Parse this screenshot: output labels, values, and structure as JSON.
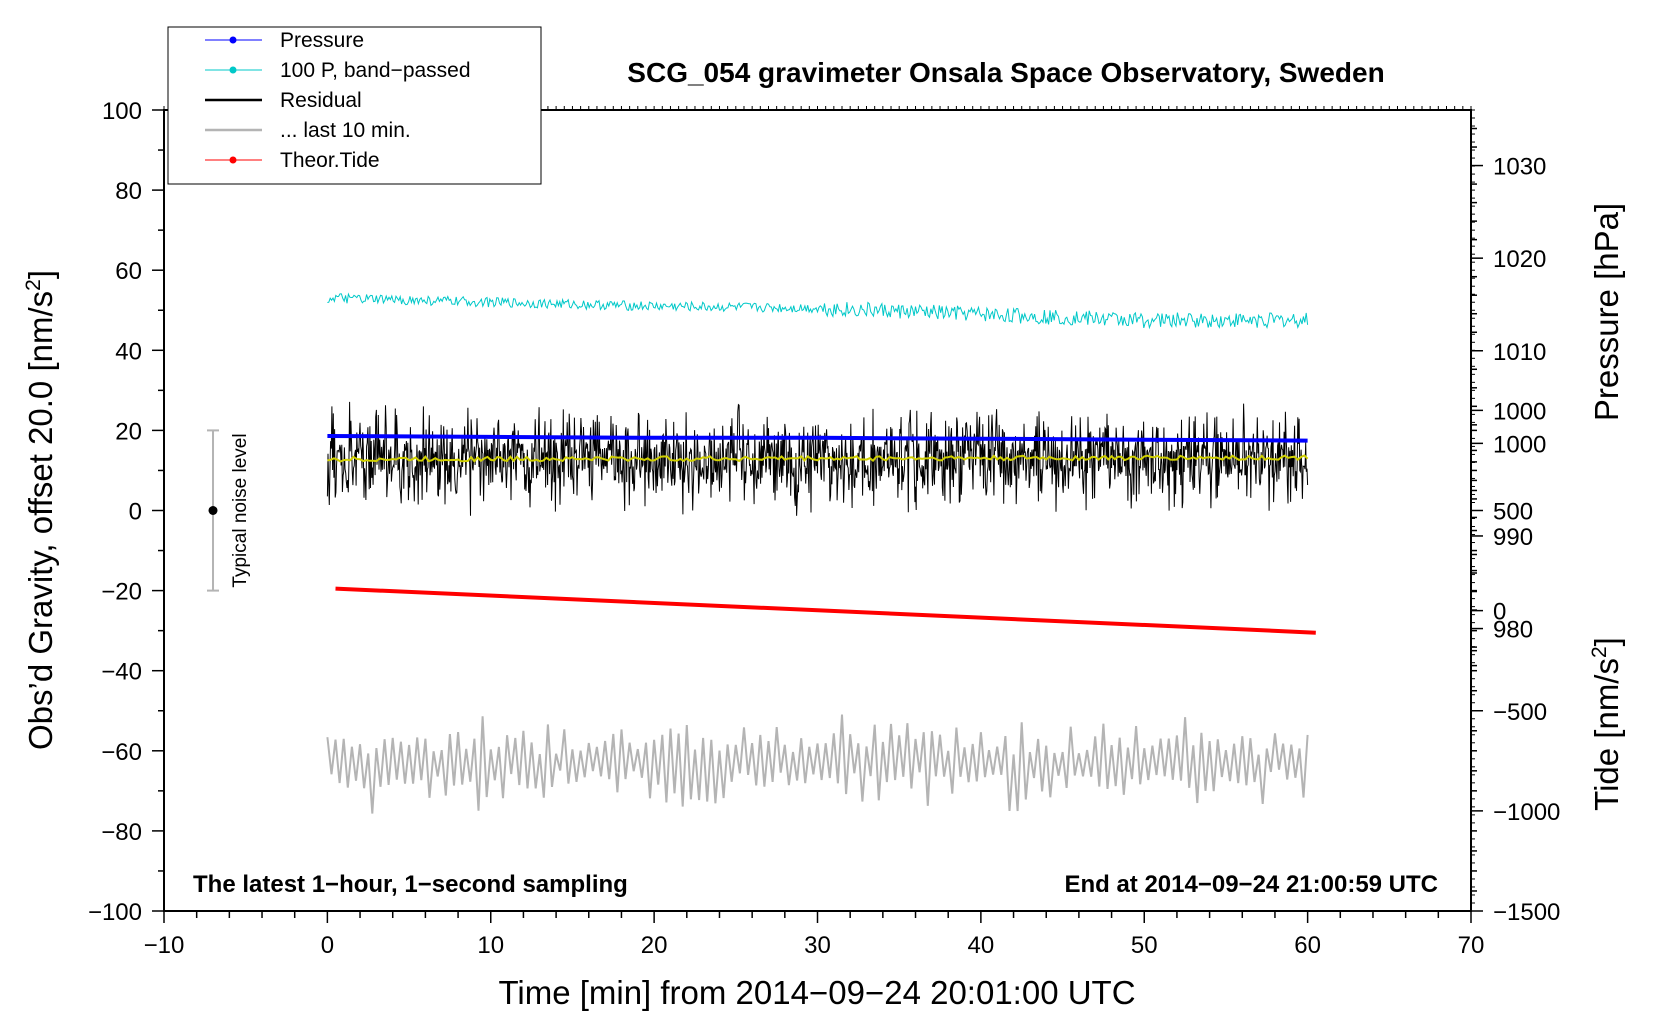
{
  "chart_data": {
    "type": "line",
    "title": "SCG_054 gravimeter Onsala Space Observatory, Sweden",
    "xlabel": "Time [min] from 2014−09−24 20:01:00 UTC",
    "ylabel_main": "Obs’d Gravity, offset 20.0 [nm/s",
    "ylabel_main_sup": "2",
    "ylabel_main_end": "]",
    "ylabel_pressure": "Pressure [hPa]",
    "ylabel_tide": "Tide [nm/s",
    "ylabel_tide_sup": "2",
    "ylabel_tide_end": "]",
    "xlim": [
      -10,
      70
    ],
    "ylim": [
      -100,
      100
    ],
    "x_ticks": [
      -10,
      0,
      10,
      20,
      30,
      40,
      50,
      60,
      70
    ],
    "x_tick_labels": [
      "−10",
      "0",
      "10",
      "20",
      "30",
      "40",
      "50",
      "60",
      "70"
    ],
    "y_ticks": [
      100,
      80,
      60,
      40,
      20,
      0,
      -20,
      -40,
      -60,
      -80,
      -100
    ],
    "y_tick_labels": [
      "100",
      "80",
      "60",
      "40",
      "20",
      "0",
      "−20",
      "−40",
      "−60",
      "−80",
      "−100"
    ],
    "pressure_axis": {
      "ticks": [
        1030,
        1020,
        1010,
        1000,
        990,
        980
      ],
      "labels": [
        "1030",
        "1020",
        "1010",
        "1000",
        "990",
        "980"
      ],
      "range": [
        949.5,
        1036
      ]
    },
    "tide_axis": {
      "ticks": [
        1000,
        500,
        0,
        -500,
        -1000,
        -1500
      ],
      "labels": [
        "1000",
        "500",
        "0",
        "−500",
        "−1000",
        "−1500"
      ],
      "range": [
        -1500,
        2500
      ]
    },
    "legend": [
      {
        "name": "Pressure",
        "color": "#0000ff",
        "marker": true
      },
      {
        "name": "100 P, band−passed",
        "color": "#00c8c8",
        "marker": true
      },
      {
        "name": "Residual",
        "color": "#000000",
        "marker": false
      },
      {
        "name": "... last 10 min.",
        "color": "#b4b4b4",
        "marker": false
      },
      {
        "name": "Theor.Tide",
        "color": "#ff0000",
        "marker": true
      }
    ],
    "series": [
      {
        "name": "Pressure",
        "axis": "pressure",
        "color": "#0000ff",
        "x": [
          0,
          10,
          20,
          30,
          40,
          50,
          60
        ],
        "y": [
          1000.8,
          1000.7,
          1000.6,
          1000.6,
          1000.5,
          1000.4,
          1000.3
        ]
      },
      {
        "name": "100 P, band−passed",
        "axis": "main",
        "color": "#00c8c8",
        "x": [
          0,
          10,
          20,
          30,
          40,
          50,
          60
        ],
        "y": [
          53,
          52,
          51,
          50.5,
          49,
          47.5,
          47.5
        ],
        "noise_amplitude": 1.2
      },
      {
        "name": "Residual",
        "axis": "main",
        "color": "#000000",
        "x": [
          0,
          60
        ],
        "y": [
          12.8,
          12.8
        ],
        "noise_amplitude": 9
      },
      {
        "name": "Residual smoothed",
        "axis": "main",
        "color": "#d0d000",
        "x": [
          0,
          60
        ],
        "y": [
          12.8,
          13.2
        ],
        "noise_amplitude": 0.6
      },
      {
        "name": "... last 10 min.",
        "axis": "main",
        "color": "#b4b4b4",
        "x": [
          0,
          60
        ],
        "y": [
          -63,
          -63
        ],
        "noise_amplitude": 8
      },
      {
        "name": "Theor.Tide",
        "axis": "tide",
        "color": "#ff0000",
        "x": [
          0.5,
          60.5
        ],
        "y": [
          110,
          -110
        ]
      }
    ],
    "noise_marker": {
      "x": -7,
      "y": 0,
      "low": -20,
      "high": 20,
      "label": "Typical noise level"
    },
    "annotation_left": "The latest 1−hour, 1−second sampling",
    "annotation_right": "End at 2014−09−24 21:00:59 UTC"
  }
}
